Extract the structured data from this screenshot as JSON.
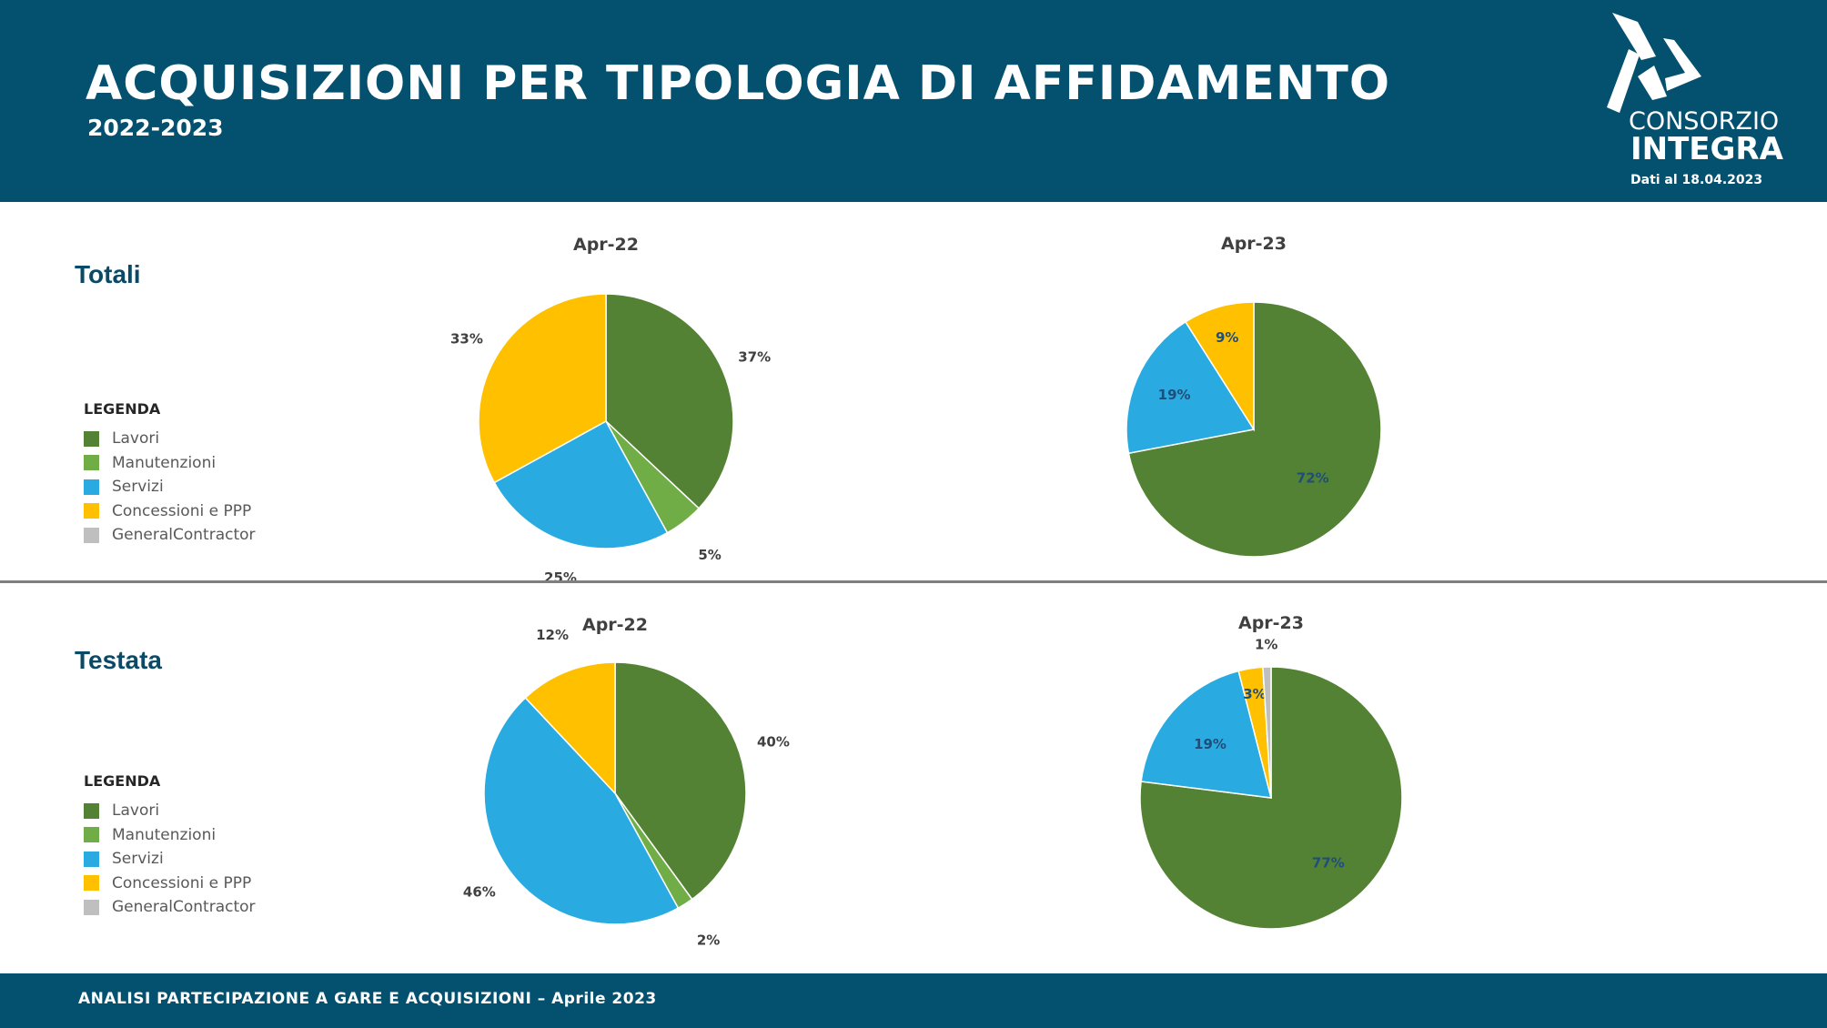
{
  "header": {
    "title": "ACQUISIZIONI PER TIPOLOGIA DI AFFIDAMENTO",
    "subtitle": "2022-2023",
    "logo_line1": "CONSORZIO",
    "logo_line2": "INTEGRA",
    "date_note": "Dati al 18.04.2023"
  },
  "colors": {
    "header_bg": "#04506f",
    "lavori": "#548235",
    "manutenzioni": "#70ad47",
    "servizi": "#29abe2",
    "concessioni": "#ffc000",
    "general_contractor": "#bfbfbf"
  },
  "sections": [
    {
      "label": "Totali",
      "legend": {
        "title": "LEGENDA",
        "items": [
          "Lavori",
          "Manutenzioni",
          "Servizi",
          "Concessioni e PPP",
          "GeneralContractor"
        ]
      }
    },
    {
      "label": "Testata",
      "legend": {
        "title": "LEGENDA",
        "items": [
          "Lavori",
          "Manutenzioni",
          "Servizi",
          "Concessioni e PPP",
          "GeneralContractor"
        ]
      }
    }
  ],
  "chart_data": [
    {
      "type": "pie",
      "section": "Totali",
      "title": "Apr-22",
      "slices": [
        {
          "category": "Lavori",
          "value": 37,
          "label": "37%"
        },
        {
          "category": "Manutenzioni",
          "value": 5,
          "label": "5%"
        },
        {
          "category": "Servizi",
          "value": 25,
          "label": "25%"
        },
        {
          "category": "Concessioni e PPP",
          "value": 33,
          "label": "33%"
        }
      ]
    },
    {
      "type": "pie",
      "section": "Totali",
      "title": "Apr-23",
      "slices": [
        {
          "category": "Lavori",
          "value": 72,
          "label": "72%"
        },
        {
          "category": "Servizi",
          "value": 19,
          "label": "19%"
        },
        {
          "category": "Concessioni e PPP",
          "value": 9,
          "label": "9%"
        }
      ]
    },
    {
      "type": "pie",
      "section": "Testata",
      "title": "Apr-22",
      "slices": [
        {
          "category": "Lavori",
          "value": 40,
          "label": "40%"
        },
        {
          "category": "Manutenzioni",
          "value": 2,
          "label": "2%"
        },
        {
          "category": "Servizi",
          "value": 46,
          "label": "46%"
        },
        {
          "category": "Concessioni e PPP",
          "value": 12,
          "label": "12%"
        }
      ]
    },
    {
      "type": "pie",
      "section": "Testata",
      "title": "Apr-23",
      "slices": [
        {
          "category": "Lavori",
          "value": 77,
          "label": "77%"
        },
        {
          "category": "Servizi",
          "value": 19,
          "label": "19%"
        },
        {
          "category": "Concessioni e PPP",
          "value": 3,
          "label": "3%"
        },
        {
          "category": "GeneralContractor",
          "value": 1,
          "label": "1%"
        }
      ]
    }
  ],
  "footer": {
    "text": "ANALISI PARTECIPAZIONE A GARE E ACQUISIZIONI – Aprile 2023"
  }
}
